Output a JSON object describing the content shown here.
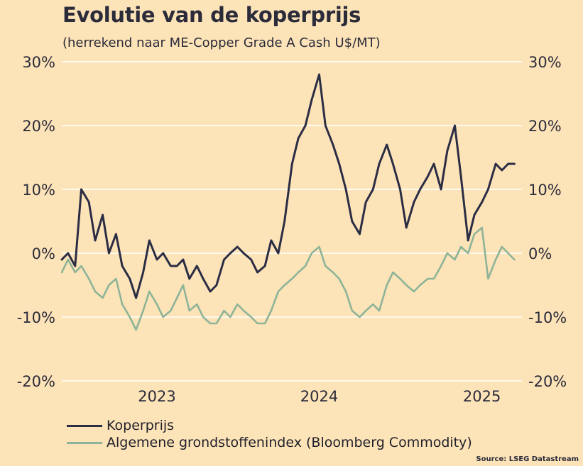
{
  "header": {
    "title": "Evolutie van de koperprijs",
    "subtitle": "(herrekend naar ME-Copper Grade A Cash U$/MT)"
  },
  "source": "Source: LSEG Datastream",
  "colors": {
    "background": "#fde4b8",
    "copper": "#2b2d45",
    "commodity": "#8db398",
    "gridline": "#ffffff"
  },
  "chart_data": {
    "type": "line",
    "title": "Evolutie van de koperprijs",
    "subtitle": "(herrekend naar ME-Copper Grade A Cash U$/MT)",
    "ylim": [
      -20,
      30
    ],
    "yticks": [
      30,
      20,
      10,
      0,
      -10,
      -20
    ],
    "ytick_labels": [
      "30%",
      "20%",
      "10%",
      "0%",
      "-10%",
      "-20%"
    ],
    "xlim": [
      "2022-06-01",
      "2025-04-01"
    ],
    "xticks": [
      {
        "date": "2023-01-01",
        "label": "2023"
      },
      {
        "date": "2024-01-01",
        "label": "2024"
      },
      {
        "date": "2025-01-01",
        "label": "2025"
      }
    ],
    "grid": "horizontal",
    "legend_position": "bottom-left",
    "x": [
      "2022-06-01",
      "2022-06-15",
      "2022-07-01",
      "2022-07-15",
      "2022-08-01",
      "2022-08-15",
      "2022-09-01",
      "2022-09-15",
      "2022-10-01",
      "2022-10-15",
      "2022-11-01",
      "2022-11-15",
      "2022-12-01",
      "2022-12-15",
      "2023-01-01",
      "2023-01-15",
      "2023-02-01",
      "2023-02-15",
      "2023-03-01",
      "2023-03-15",
      "2023-04-01",
      "2023-04-15",
      "2023-05-01",
      "2023-05-15",
      "2023-06-01",
      "2023-06-15",
      "2023-07-01",
      "2023-07-15",
      "2023-08-01",
      "2023-08-15",
      "2023-09-01",
      "2023-09-15",
      "2023-10-01",
      "2023-10-15",
      "2023-11-01",
      "2023-11-15",
      "2023-12-01",
      "2023-12-15",
      "2024-01-01",
      "2024-01-15",
      "2024-02-01",
      "2024-02-15",
      "2024-03-01",
      "2024-03-15",
      "2024-04-01",
      "2024-04-15",
      "2024-05-01",
      "2024-05-15",
      "2024-06-01",
      "2024-06-15",
      "2024-07-01",
      "2024-07-15",
      "2024-08-01",
      "2024-08-15",
      "2024-09-01",
      "2024-09-15",
      "2024-10-01",
      "2024-10-15",
      "2024-11-01",
      "2024-11-15",
      "2024-12-01",
      "2024-12-15",
      "2025-01-01",
      "2025-01-15",
      "2025-02-01",
      "2025-02-15",
      "2025-03-01",
      "2025-03-15"
    ],
    "series": [
      {
        "name": "Koperprijs",
        "color": "#2b2d45",
        "values": [
          -1,
          0,
          -2,
          10,
          8,
          2,
          6,
          0,
          3,
          -2,
          -4,
          -7,
          -3,
          2,
          -1,
          0,
          -2,
          -2,
          -1,
          -4,
          -2,
          -4,
          -6,
          -5,
          -1,
          0,
          1,
          0,
          -1,
          -3,
          -2,
          2,
          0,
          5,
          14,
          18,
          20,
          24,
          28,
          20,
          17,
          14,
          10,
          5,
          3,
          8,
          10,
          14,
          17,
          14,
          10,
          4,
          8,
          10,
          12,
          14,
          10,
          16,
          20,
          12,
          2,
          6,
          8,
          10,
          14,
          13,
          14,
          14
        ]
      },
      {
        "name": "Algemene grondstoffenindex (Bloomberg Commodity)",
        "color": "#8db398",
        "values": [
          -3,
          -1,
          -3,
          -2,
          -4,
          -6,
          -7,
          -5,
          -4,
          -8,
          -10,
          -12,
          -9,
          -6,
          -8,
          -10,
          -9,
          -7,
          -5,
          -9,
          -8,
          -10,
          -11,
          -11,
          -9,
          -10,
          -8,
          -9,
          -10,
          -11,
          -11,
          -9,
          -6,
          -5,
          -4,
          -3,
          -2,
          0,
          1,
          -2,
          -3,
          -4,
          -6,
          -9,
          -10,
          -9,
          -8,
          -9,
          -5,
          -3,
          -4,
          -5,
          -6,
          -5,
          -4,
          -4,
          -2,
          0,
          -1,
          1,
          0,
          3,
          4,
          -4,
          -1,
          1,
          0,
          -1
        ]
      }
    ]
  },
  "legend": {
    "items": [
      {
        "label": "Koperprijs"
      },
      {
        "label": "Algemene grondstoffenindex (Bloomberg Commodity)"
      }
    ]
  }
}
